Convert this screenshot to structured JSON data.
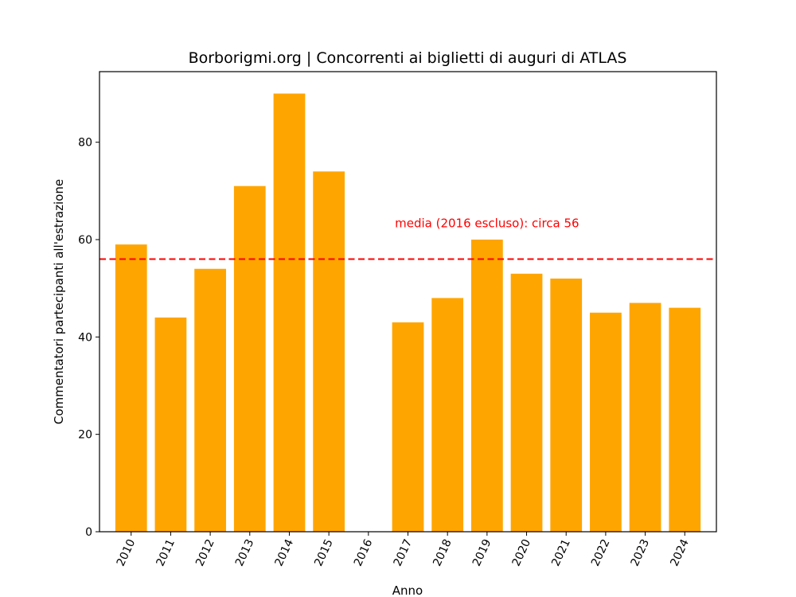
{
  "chart_data": {
    "type": "bar",
    "title": "Borborigmi.org | Concorrenti ai biglietti di auguri di ATLAS",
    "xlabel": "Anno",
    "ylabel": "Commentatori partecipanti all'estrazione",
    "categories": [
      "2010",
      "2011",
      "2012",
      "2013",
      "2014",
      "2015",
      "2016",
      "2017",
      "2018",
      "2019",
      "2020",
      "2021",
      "2022",
      "2023",
      "2024"
    ],
    "values": [
      59,
      44,
      54,
      71,
      90,
      74,
      null,
      43,
      48,
      60,
      53,
      52,
      45,
      47,
      46
    ],
    "ylim": [
      0,
      94.5
    ],
    "yticks": [
      0,
      20,
      40,
      60,
      80
    ],
    "bar_color": "#FFA500",
    "reference_line": {
      "value": 56,
      "color": "#FF0000",
      "style": "dashed",
      "label": "media (2016 escluso): circa 56"
    },
    "grid": false,
    "x_tick_rotation": 65
  }
}
